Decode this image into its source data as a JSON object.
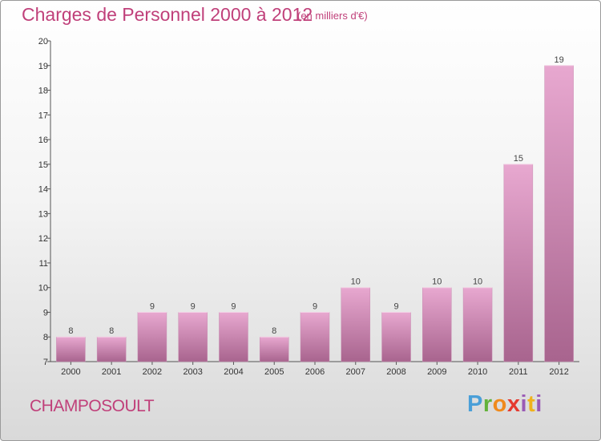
{
  "header": {
    "title": "Charges de Personnel 2000 à 2012",
    "subtitle": "(en milliers d'€)"
  },
  "footer": {
    "commune": "CHAMPOSOULT",
    "logo": "Proxiti"
  },
  "colors": {
    "accent": "#c0407a",
    "bar_top": "#e8a8d0",
    "bar_bottom": "#a8648e"
  },
  "chart_data": {
    "type": "bar",
    "title": "Charges de Personnel 2000 à 2012",
    "subtitle": "(en milliers d'€)",
    "xlabel": "",
    "ylabel": "",
    "categories": [
      "2000",
      "2001",
      "2002",
      "2003",
      "2004",
      "2005",
      "2006",
      "2007",
      "2008",
      "2009",
      "2010",
      "2011",
      "2012"
    ],
    "values": [
      8,
      8,
      9,
      9,
      9,
      8,
      9,
      10,
      9,
      10,
      10,
      15,
      19
    ],
    "ylim": [
      7,
      20
    ],
    "yticks": [
      7,
      8,
      9,
      10,
      11,
      12,
      13,
      14,
      15,
      16,
      17,
      18,
      19,
      20
    ],
    "grid": false,
    "legend": "none"
  }
}
